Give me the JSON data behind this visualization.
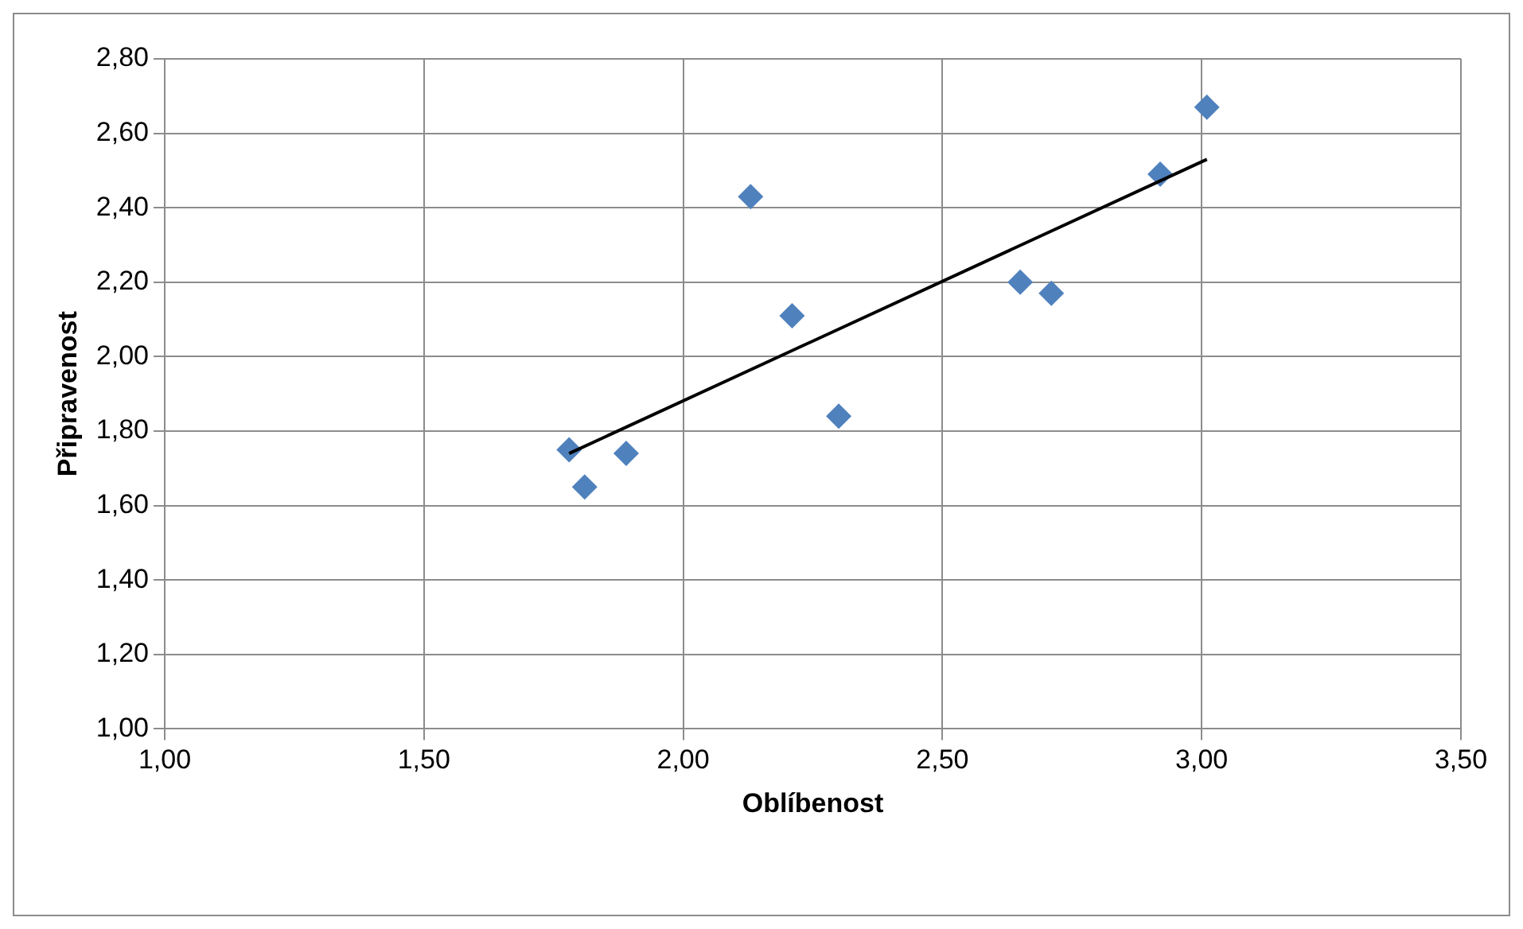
{
  "chart_data": {
    "type": "scatter",
    "xlabel": "Oblíbenost",
    "ylabel": "Připravenost",
    "xlim": [
      1,
      3.5
    ],
    "ylim": [
      1,
      2.8
    ],
    "xticks": [
      {
        "value": 1,
        "label": "1,00"
      },
      {
        "value": 1.5,
        "label": "1,50"
      },
      {
        "value": 2,
        "label": "2,00"
      },
      {
        "value": 2.5,
        "label": "2,50"
      },
      {
        "value": 3,
        "label": "3,00"
      },
      {
        "value": 3.5,
        "label": "3,50"
      }
    ],
    "yticks": [
      {
        "value": 1,
        "label": "1,00"
      },
      {
        "value": 1.2,
        "label": "1,20"
      },
      {
        "value": 1.4,
        "label": "1,40"
      },
      {
        "value": 1.6,
        "label": "1,60"
      },
      {
        "value": 1.8,
        "label": "1,80"
      },
      {
        "value": 2,
        "label": "2,00"
      },
      {
        "value": 2.2,
        "label": "2,20"
      },
      {
        "value": 2.4,
        "label": "2,40"
      },
      {
        "value": 2.6,
        "label": "2,60"
      },
      {
        "value": 2.8,
        "label": "2,80"
      }
    ],
    "grid": true,
    "marker": "diamond",
    "series": [
      {
        "color": "#4f81bd",
        "x": [
          1.78,
          1.81,
          1.89,
          2.13,
          2.21,
          2.3,
          2.65,
          2.71,
          2.92,
          3.01
        ],
        "values": [
          1.75,
          1.65,
          1.74,
          2.43,
          2.11,
          1.84,
          2.2,
          2.17,
          2.49,
          2.67
        ]
      },
      {
        "type": "line",
        "marker": "none",
        "color": "#000000",
        "x": [
          1.78,
          3.01
        ],
        "values": [
          1.74,
          2.53
        ]
      }
    ]
  }
}
